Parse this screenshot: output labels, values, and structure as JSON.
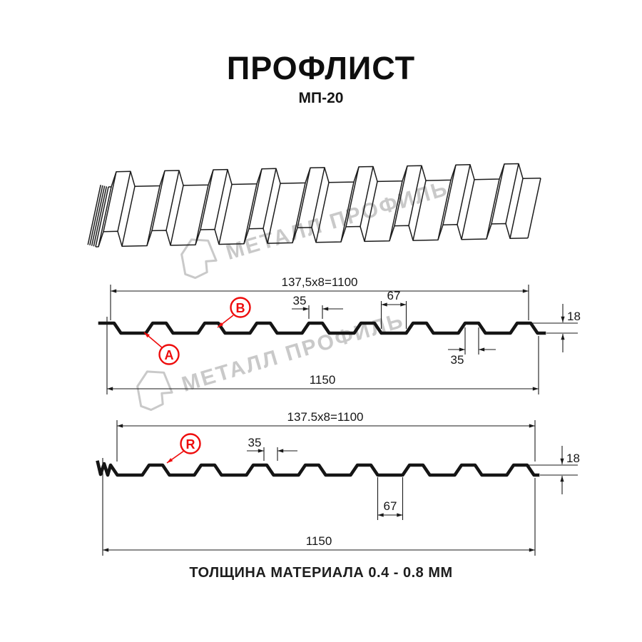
{
  "header": {
    "title": "ПРОФЛИСТ",
    "subtitle": "МП-20"
  },
  "watermark": {
    "brand": "МЕТАЛЛ ПРОФИЛЬ"
  },
  "section1": {
    "dim_top_formula": "137,5x8=1100",
    "dim_rib_top": "35",
    "dim_flat": "67",
    "dim_rib_bottom": "35",
    "dim_height": "18",
    "dim_total": "1150",
    "label_a": "A",
    "label_b": "B"
  },
  "section2": {
    "dim_top_formula": "137.5x8=1100",
    "dim_rib": "35",
    "dim_flat": "67",
    "dim_height": "18",
    "dim_total": "1150",
    "label_r": "R"
  },
  "footer": {
    "text": "ТОЛЩИНА МАТЕРИАЛА 0.4 - 0.8 ММ"
  },
  "colors": {
    "accent_red": "#ee0c0c",
    "line": "#1a1a1a",
    "watermark_gray": "#c9c9c9"
  }
}
